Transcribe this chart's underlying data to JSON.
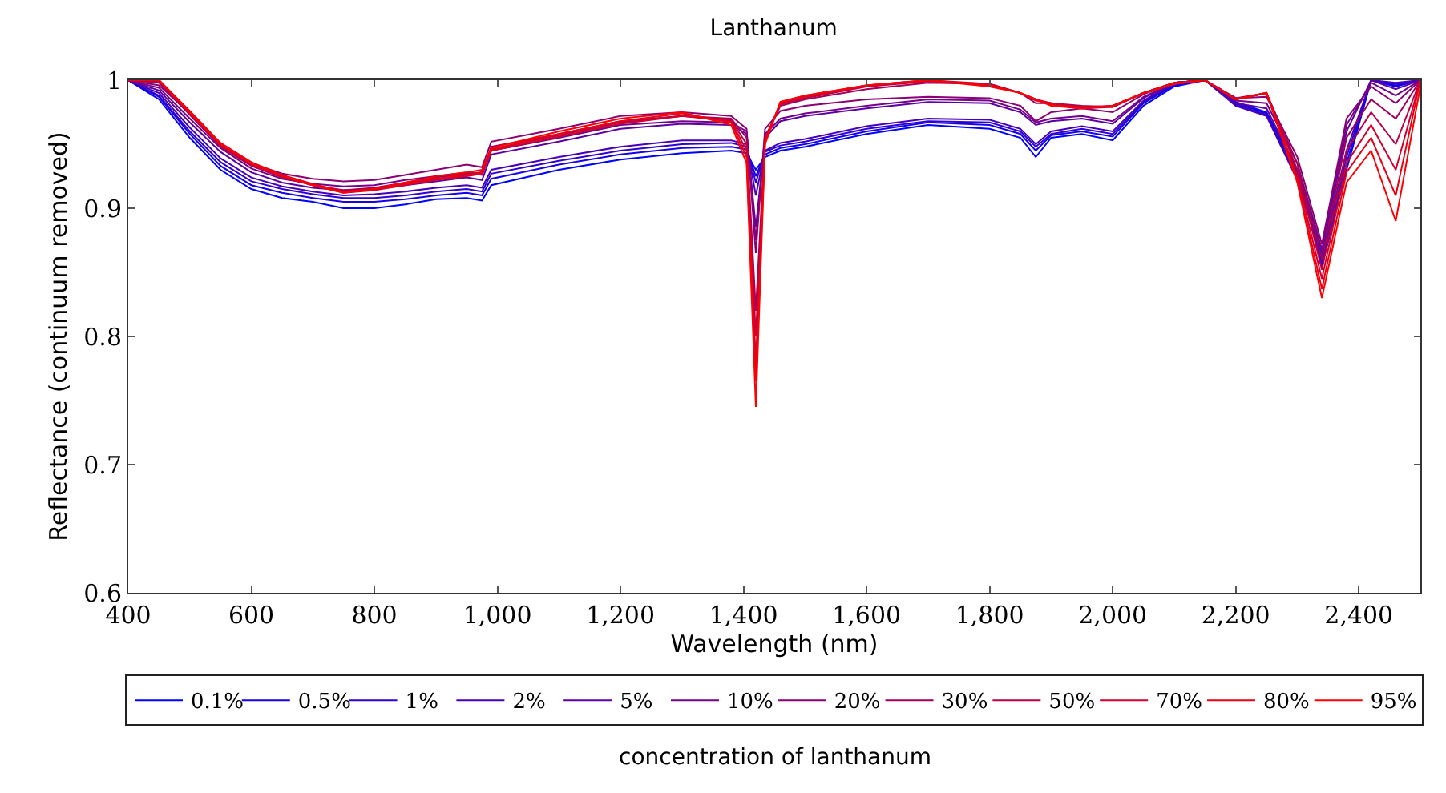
{
  "chart_data": {
    "type": "line",
    "title": "Lanthanum",
    "xlabel": "Wavelength (nm)",
    "ylabel": "Reflectance (continuum removed)",
    "legend_title": "concentration of lanthanum",
    "legend": "bottom",
    "marker": "none",
    "line_style": "solid",
    "xlim": [
      400,
      2500
    ],
    "ylim": [
      0.6,
      1
    ],
    "xticks": [
      400,
      600,
      800,
      {
        "value": 1000,
        "label": "1,000"
      },
      {
        "value": 1200,
        "label": "1,200"
      },
      {
        "value": 1400,
        "label": "1,400"
      },
      {
        "value": 1600,
        "label": "1,600"
      },
      {
        "value": 1800,
        "label": "1,800"
      },
      {
        "value": 2000,
        "label": "2,000"
      },
      {
        "value": 2200,
        "label": "2,200"
      },
      {
        "value": 2400,
        "label": "2,400"
      }
    ],
    "yticks": [
      0.6,
      0.7,
      0.8,
      0.9,
      1
    ],
    "x": [
      400,
      450,
      500,
      550,
      600,
      650,
      700,
      750,
      800,
      850,
      900,
      950,
      975,
      990,
      1100,
      1200,
      1300,
      1380,
      1405,
      1420,
      1435,
      1460,
      1500,
      1600,
      1700,
      1800,
      1850,
      1875,
      1900,
      1950,
      2000,
      2050,
      2100,
      2150,
      2200,
      2250,
      2300,
      2340,
      2380,
      2420,
      2460,
      2500
    ],
    "series": [
      {
        "name": "0.1%",
        "color": "#0000ff",
        "values": [
          1.0,
          0.985,
          0.955,
          0.93,
          0.915,
          0.908,
          0.905,
          0.9,
          0.9,
          0.903,
          0.907,
          0.908,
          0.906,
          0.918,
          0.93,
          0.938,
          0.943,
          0.945,
          0.943,
          0.93,
          0.94,
          0.945,
          0.948,
          0.958,
          0.965,
          0.962,
          0.955,
          0.94,
          0.955,
          0.958,
          0.953,
          0.98,
          0.995,
          1.0,
          0.983,
          0.975,
          0.93,
          0.855,
          0.93,
          1.0,
          0.995,
          1.0
        ]
      },
      {
        "name": "0.5%",
        "color": "#1700e8",
        "values": [
          1.0,
          0.987,
          0.958,
          0.933,
          0.918,
          0.912,
          0.908,
          0.905,
          0.905,
          0.907,
          0.91,
          0.912,
          0.91,
          0.923,
          0.934,
          0.942,
          0.947,
          0.948,
          0.946,
          0.925,
          0.942,
          0.947,
          0.95,
          0.96,
          0.967,
          0.965,
          0.958,
          0.945,
          0.957,
          0.96,
          0.956,
          0.982,
          0.996,
          1.0,
          0.982,
          0.974,
          0.928,
          0.858,
          0.935,
          1.0,
          0.996,
          1.0
        ]
      },
      {
        "name": "1%",
        "color": "#2e00d1",
        "values": [
          1.0,
          0.988,
          0.96,
          0.936,
          0.921,
          0.915,
          0.911,
          0.908,
          0.908,
          0.91,
          0.913,
          0.915,
          0.913,
          0.927,
          0.937,
          0.945,
          0.95,
          0.951,
          0.948,
          0.92,
          0.944,
          0.949,
          0.952,
          0.962,
          0.968,
          0.967,
          0.96,
          0.948,
          0.958,
          0.962,
          0.958,
          0.983,
          0.997,
          1.0,
          0.981,
          0.973,
          0.925,
          0.86,
          0.94,
          1.0,
          0.997,
          1.0
        ]
      },
      {
        "name": "2%",
        "color": "#4600b9",
        "values": [
          1.0,
          0.99,
          0.963,
          0.939,
          0.924,
          0.917,
          0.913,
          0.91,
          0.911,
          0.913,
          0.916,
          0.918,
          0.916,
          0.93,
          0.94,
          0.948,
          0.953,
          0.953,
          0.95,
          0.91,
          0.945,
          0.951,
          0.954,
          0.964,
          0.97,
          0.969,
          0.962,
          0.95,
          0.96,
          0.964,
          0.96,
          0.984,
          0.998,
          1.0,
          0.98,
          0.972,
          0.922,
          0.862,
          0.945,
          1.0,
          0.998,
          1.0
        ]
      },
      {
        "name": "5%",
        "color": "#5d00a2",
        "values": [
          1.0,
          0.992,
          0.967,
          0.944,
          0.928,
          0.92,
          0.916,
          0.914,
          0.915,
          0.918,
          0.921,
          0.924,
          0.922,
          0.942,
          0.952,
          0.962,
          0.966,
          0.965,
          0.958,
          0.885,
          0.955,
          0.968,
          0.972,
          0.978,
          0.983,
          0.982,
          0.975,
          0.965,
          0.968,
          0.97,
          0.966,
          0.986,
          0.998,
          1.0,
          0.982,
          0.978,
          0.93,
          0.865,
          0.96,
          1.0,
          0.993,
          1.0
        ]
      },
      {
        "name": "10%",
        "color": "#74008b",
        "values": [
          1.0,
          0.994,
          0.97,
          0.947,
          0.931,
          0.923,
          0.919,
          0.917,
          0.918,
          0.922,
          0.925,
          0.928,
          0.926,
          0.945,
          0.955,
          0.965,
          0.968,
          0.967,
          0.96,
          0.875,
          0.958,
          0.97,
          0.974,
          0.98,
          0.985,
          0.984,
          0.977,
          0.967,
          0.97,
          0.972,
          0.968,
          0.987,
          0.998,
          1.0,
          0.984,
          0.982,
          0.935,
          0.868,
          0.965,
          0.998,
          0.988,
          1.0
        ]
      },
      {
        "name": "20%",
        "color": "#8b0074",
        "values": [
          1.0,
          0.996,
          0.974,
          0.95,
          0.935,
          0.927,
          0.923,
          0.921,
          0.922,
          0.926,
          0.93,
          0.934,
          0.932,
          0.952,
          0.962,
          0.972,
          0.975,
          0.972,
          0.962,
          0.865,
          0.962,
          0.976,
          0.98,
          0.985,
          0.987,
          0.986,
          0.98,
          0.968,
          0.975,
          0.978,
          0.975,
          0.989,
          0.998,
          1.0,
          0.986,
          0.987,
          0.94,
          0.872,
          0.97,
          0.995,
          0.982,
          1.0
        ]
      },
      {
        "name": "30%",
        "color": "#a2005d",
        "values": [
          1.0,
          0.998,
          0.973,
          0.948,
          0.933,
          0.924,
          0.918,
          0.914,
          0.916,
          0.92,
          0.924,
          0.927,
          0.928,
          0.948,
          0.958,
          0.968,
          0.972,
          0.97,
          0.955,
          0.82,
          0.955,
          0.98,
          0.985,
          0.993,
          0.998,
          0.997,
          0.99,
          0.982,
          0.982,
          0.98,
          0.979,
          0.99,
          0.998,
          1.0,
          0.986,
          0.99,
          0.935,
          0.86,
          0.955,
          0.985,
          0.97,
          1.0
        ]
      },
      {
        "name": "50%",
        "color": "#b90046",
        "values": [
          1.0,
          0.999,
          0.974,
          0.949,
          0.934,
          0.925,
          0.918,
          0.913,
          0.915,
          0.919,
          0.923,
          0.926,
          0.928,
          0.946,
          0.957,
          0.967,
          0.972,
          0.969,
          0.95,
          0.8,
          0.955,
          0.981,
          0.986,
          0.995,
          0.999,
          0.997,
          0.99,
          0.984,
          0.982,
          0.978,
          0.979,
          0.99,
          0.998,
          1.0,
          0.985,
          0.99,
          0.93,
          0.852,
          0.945,
          0.975,
          0.95,
          1.0
        ]
      },
      {
        "name": "70%",
        "color": "#d1002e",
        "values": [
          1.0,
          1.0,
          0.975,
          0.95,
          0.935,
          0.925,
          0.918,
          0.912,
          0.914,
          0.918,
          0.922,
          0.925,
          0.927,
          0.945,
          0.956,
          0.966,
          0.972,
          0.968,
          0.945,
          0.78,
          0.953,
          0.982,
          0.987,
          0.996,
          1.0,
          0.997,
          0.99,
          0.985,
          0.982,
          0.979,
          0.98,
          0.99,
          0.998,
          1.0,
          0.985,
          0.99,
          0.925,
          0.845,
          0.935,
          0.965,
          0.93,
          1.0
        ]
      },
      {
        "name": "80%",
        "color": "#e80017",
        "values": [
          1.0,
          1.0,
          0.976,
          0.951,
          0.936,
          0.926,
          0.919,
          0.913,
          0.915,
          0.919,
          0.923,
          0.926,
          0.928,
          0.946,
          0.958,
          0.968,
          0.974,
          0.967,
          0.94,
          0.765,
          0.952,
          0.983,
          0.988,
          0.996,
          1.0,
          0.996,
          0.99,
          0.985,
          0.981,
          0.978,
          0.98,
          0.99,
          0.997,
          1.0,
          0.985,
          0.99,
          0.922,
          0.837,
          0.928,
          0.955,
          0.91,
          1.0
        ]
      },
      {
        "name": "95%",
        "color": "#ff0000",
        "values": [
          1.0,
          1.0,
          0.975,
          0.95,
          0.935,
          0.925,
          0.918,
          0.912,
          0.915,
          0.92,
          0.925,
          0.928,
          0.93,
          0.947,
          0.96,
          0.97,
          0.975,
          0.965,
          0.935,
          0.745,
          0.95,
          0.983,
          0.988,
          0.996,
          1.0,
          0.995,
          0.99,
          0.985,
          0.98,
          0.978,
          0.98,
          0.99,
          0.997,
          1.0,
          0.985,
          0.99,
          0.92,
          0.83,
          0.92,
          0.945,
          0.89,
          0.995
        ]
      }
    ]
  }
}
